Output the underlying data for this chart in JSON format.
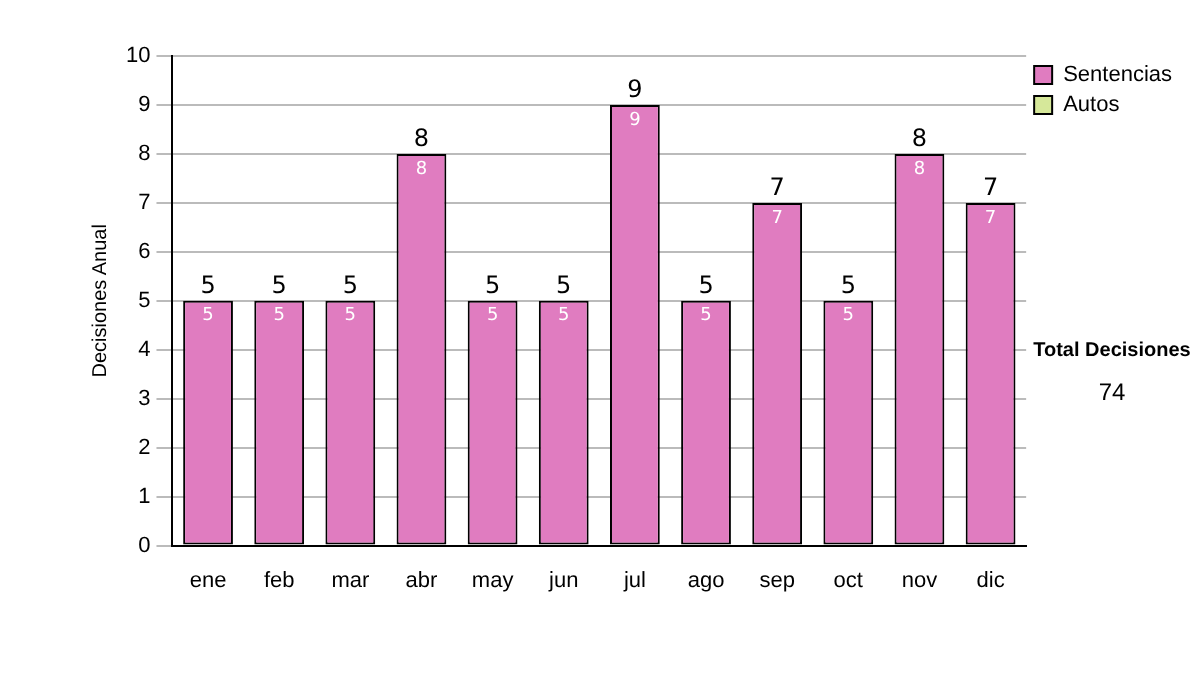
{
  "chart_data": {
    "type": "bar",
    "stacked": true,
    "ylabel": "Decisiones Anual",
    "categories": [
      "ene",
      "feb",
      "mar",
      "abr",
      "may",
      "jun",
      "jul",
      "ago",
      "sep",
      "oct",
      "nov",
      "dic"
    ],
    "series": [
      {
        "name": "Sentencias",
        "color": "#e07cc0",
        "values": [
          5,
          5,
          5,
          8,
          5,
          5,
          9,
          5,
          7,
          5,
          8,
          7
        ],
        "value_labels": [
          "5",
          "5",
          "5",
          "8",
          "5",
          "5",
          "9",
          "5",
          "7",
          "5",
          "8",
          "7"
        ]
      },
      {
        "name": "Autos",
        "color": "#d6e89a",
        "values": [
          0,
          0,
          0,
          0,
          0,
          0,
          0,
          0,
          0,
          0,
          0,
          0
        ],
        "value_labels": [
          null,
          null,
          null,
          null,
          null,
          null,
          null,
          null,
          null,
          null,
          null,
          null
        ]
      }
    ],
    "totals": [
      "5",
      "5",
      "5",
      "8",
      "5",
      "5",
      "9",
      "5",
      "7",
      "5",
      "8",
      "7"
    ],
    "ylim": [
      0,
      10
    ],
    "yticks": [
      0,
      1,
      2,
      3,
      4,
      5,
      6,
      7,
      8,
      9,
      10
    ],
    "grid": "y",
    "legend": "right",
    "annotations": [
      "Total Decisiones",
      "74"
    ]
  }
}
